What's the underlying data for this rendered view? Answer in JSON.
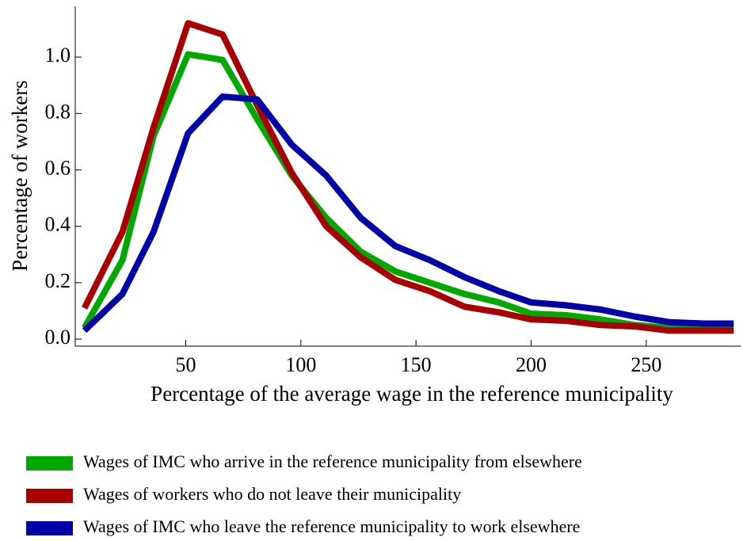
{
  "chart_data": {
    "type": "line",
    "xlabel": "Percentage of the average wage in the reference municipality",
    "ylabel": "Percentage of workers",
    "x": [
      6,
      22.5,
      36,
      51,
      66,
      81,
      96,
      111,
      126,
      141,
      156,
      171,
      186,
      200,
      215,
      230,
      245,
      260,
      275,
      288
    ],
    "series": [
      {
        "name": "Wages of IMC who arrive in the reference municipality from elsewhere",
        "color": "#00a800",
        "values": [
          0.04,
          0.28,
          0.72,
          1.01,
          0.99,
          0.78,
          0.58,
          0.43,
          0.31,
          0.24,
          0.2,
          0.16,
          0.13,
          0.09,
          0.085,
          0.07,
          0.05,
          0.04,
          0.04,
          0.04
        ]
      },
      {
        "name": "Wages of workers who do not leave their municipality",
        "color": "#a80000",
        "values": [
          0.11,
          0.38,
          0.75,
          1.12,
          1.08,
          0.83,
          0.59,
          0.4,
          0.29,
          0.21,
          0.17,
          0.115,
          0.095,
          0.07,
          0.065,
          0.05,
          0.045,
          0.03,
          0.03,
          0.03
        ]
      },
      {
        "name": "Wages of IMC who leave the reference municipality to work elsewhere",
        "color": "#0000a8",
        "values": [
          0.03,
          0.16,
          0.38,
          0.73,
          0.86,
          0.85,
          0.69,
          0.58,
          0.43,
          0.33,
          0.28,
          0.22,
          0.17,
          0.13,
          0.12,
          0.105,
          0.08,
          0.06,
          0.055,
          0.055
        ]
      }
    ],
    "xlim": [
      2,
      291
    ],
    "xticks": [
      50,
      100,
      150,
      200,
      250
    ],
    "ylim": [
      -0.025,
      1.18
    ],
    "yticks": [
      {
        "value": 0,
        "label": "0.0"
      },
      0.2,
      0.4,
      0.6,
      0.8,
      {
        "value": 1,
        "label": "1.0"
      }
    ],
    "legend": "bottom"
  }
}
